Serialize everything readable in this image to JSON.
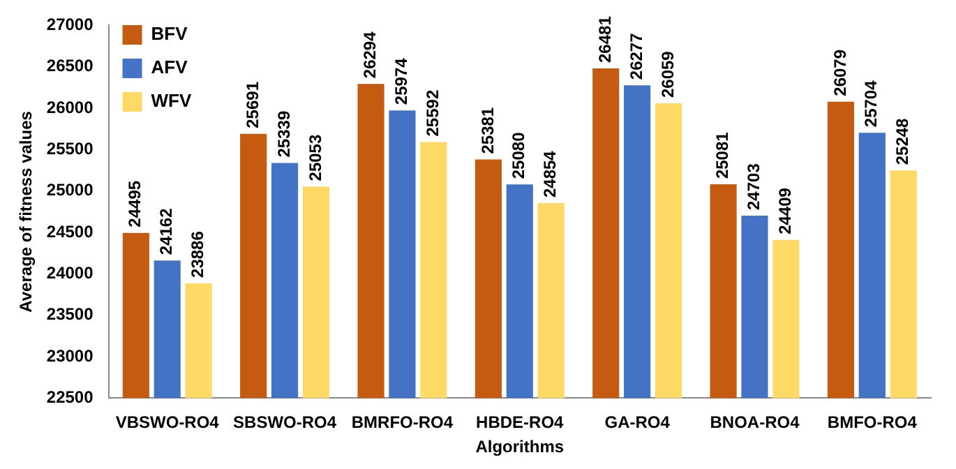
{
  "chart_data": {
    "type": "bar",
    "xlabel": "Algorithms",
    "ylabel": "Average of fitness values",
    "categories": [
      "VBSWO-RO4",
      "SBSWO-RO4",
      "BMRFO-RO4",
      "HBDE-RO4",
      "GA-RO4",
      "BNOA-RO4",
      "BMFO-RO4"
    ],
    "series": [
      {
        "name": "BFV",
        "color": "#c55a11",
        "values": [
          24495,
          25691,
          26294,
          25381,
          26481,
          25081,
          26079
        ]
      },
      {
        "name": "AFV",
        "color": "#4472c4",
        "values": [
          24162,
          25339,
          25974,
          25080,
          26277,
          24703,
          25704
        ]
      },
      {
        "name": "WFV",
        "color": "#ffd966",
        "values": [
          23886,
          25053,
          25592,
          24854,
          26059,
          24409,
          25248
        ]
      }
    ],
    "ylim": [
      22500,
      27000
    ],
    "yticks": [
      22500,
      23000,
      23500,
      24000,
      24500,
      25000,
      25500,
      26000,
      26500,
      27000
    ],
    "grid": false,
    "legend": "top left",
    "data_labels": true
  }
}
